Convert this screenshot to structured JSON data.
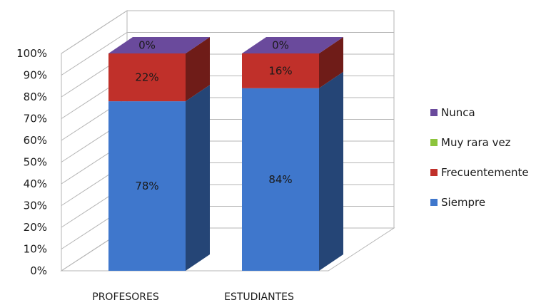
{
  "chart_data": {
    "type": "bar",
    "stacked": true,
    "three_d": true,
    "categories": [
      "PROFESORES",
      "ESTUDIANTES"
    ],
    "series": [
      {
        "name": "Siempre",
        "values": [
          78,
          84
        ],
        "labels": [
          "78%",
          "84%"
        ],
        "color": "#3f77cc"
      },
      {
        "name": "Frecuentemente",
        "values": [
          22,
          16
        ],
        "labels": [
          "22%",
          "16%"
        ],
        "color": "#c0302a"
      },
      {
        "name": "Muy rara vez",
        "values": [
          0,
          0
        ],
        "labels": [],
        "color": "#8cc43c"
      },
      {
        "name": "Nunca",
        "values": [
          0,
          0
        ],
        "labels": [
          "0%",
          "0%"
        ],
        "color": "#6a4a9c"
      }
    ],
    "y_ticks": [
      "0%",
      "10%",
      "20%",
      "30%",
      "40%",
      "50%",
      "60%",
      "70%",
      "80%",
      "90%",
      "100%"
    ],
    "ylim": [
      0,
      100
    ],
    "grid": true,
    "legend_position": "right",
    "legend_order": [
      "Nunca",
      "Muy rara vez",
      "Frecuentemente",
      "Siempre"
    ]
  }
}
